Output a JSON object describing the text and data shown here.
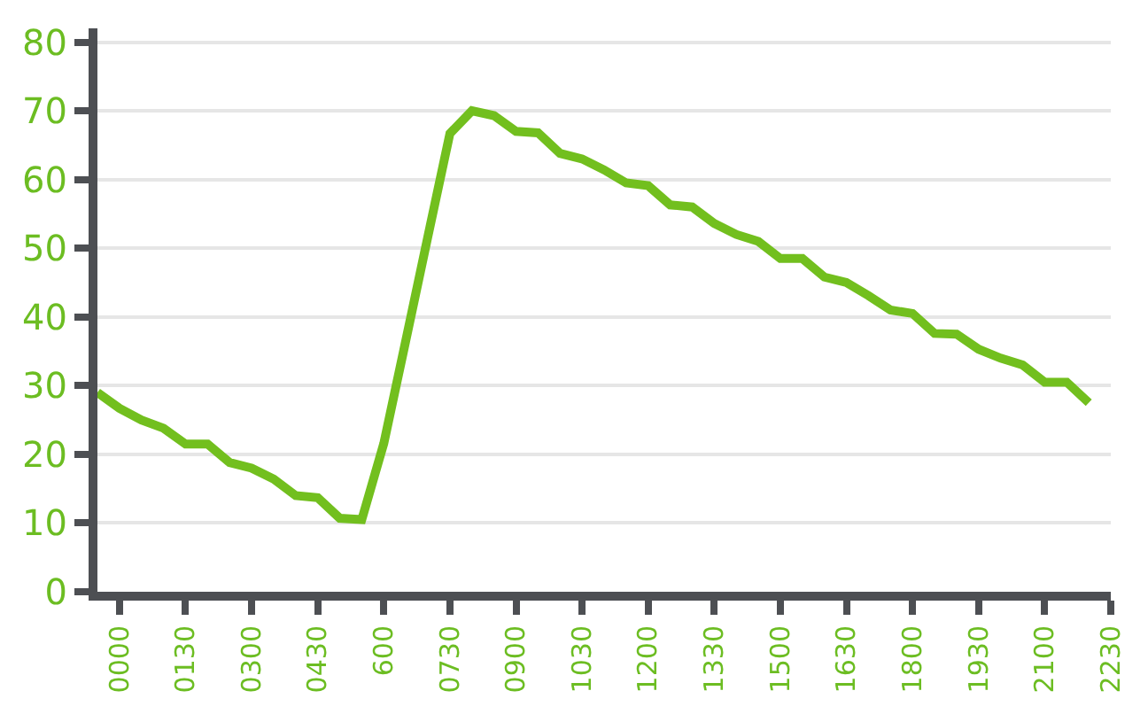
{
  "chart_data": {
    "type": "line",
    "categories": [
      null,
      "0000",
      null,
      null,
      "0130",
      null,
      null,
      "0300",
      null,
      null,
      "0430",
      null,
      null,
      "600",
      null,
      null,
      "0730",
      null,
      null,
      "0900",
      null,
      null,
      "1030",
      null,
      null,
      "1200",
      null,
      null,
      "1330",
      null,
      null,
      "1500",
      null,
      null,
      "1630",
      null,
      null,
      "1800",
      null,
      null,
      "1930",
      null,
      null,
      "2100",
      null,
      null,
      "2230"
    ],
    "series": [
      {
        "color": "#72bf1e",
        "values": [
          29,
          26.7,
          25,
          23.8,
          21.5,
          21.5,
          18.8,
          18,
          16.4,
          14,
          13.7,
          10.7,
          10.5,
          21.6,
          36.6,
          51.7,
          66.7,
          70,
          69.3,
          67,
          66.8,
          63.8,
          63,
          61.4,
          59.5,
          59.1,
          56.3,
          56,
          53.6,
          52,
          51,
          48.5,
          48.5,
          45.8,
          45,
          43.1,
          41,
          40.5,
          37.6,
          37.5,
          35.3,
          34,
          33,
          30.5,
          30.5,
          27.5,
          null
        ]
      }
    ],
    "ylim": [
      0,
      82
    ],
    "yticks": [
      0,
      10,
      20,
      30,
      40,
      50,
      60,
      70,
      80
    ],
    "grid": "y",
    "marker": "none",
    "line_style": "solid"
  }
}
